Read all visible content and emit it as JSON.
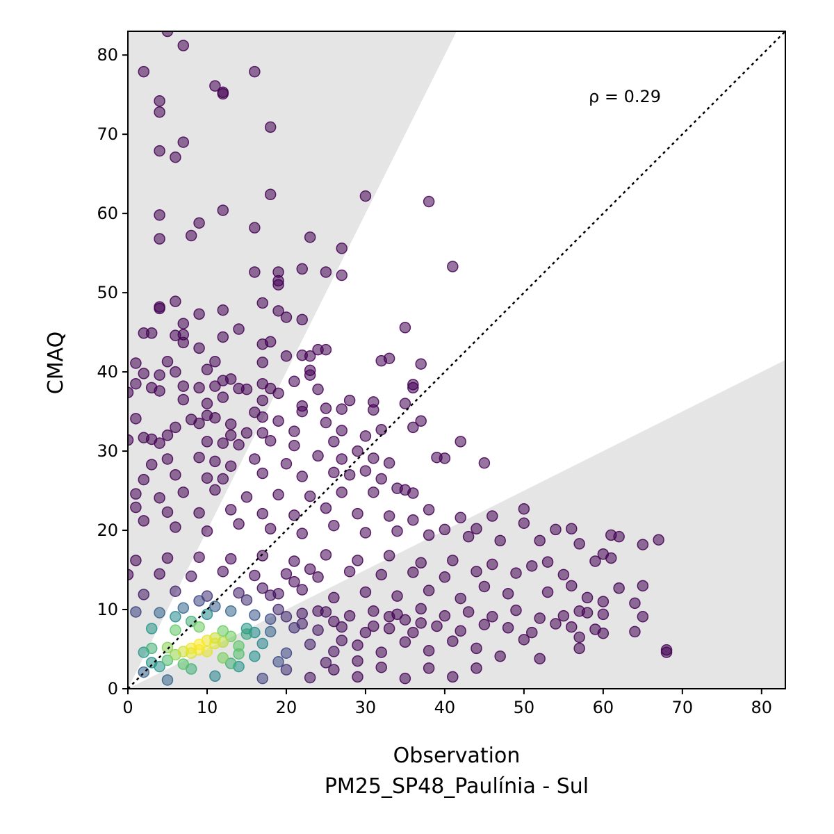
{
  "chart_data": {
    "type": "scatter",
    "title": "",
    "xlabel": "Observation",
    "xlabel_line2": "PM25_SP48_Paulínia - Sul",
    "ylabel": "CMAQ",
    "xlim": [
      0,
      83
    ],
    "ylim": [
      0,
      83
    ],
    "xticks": [
      0,
      10,
      20,
      30,
      40,
      50,
      60,
      70,
      80
    ],
    "yticks": [
      0,
      10,
      20,
      30,
      40,
      50,
      60,
      70,
      80
    ],
    "annotation": "ρ = 0.29",
    "reference_line": {
      "type": "1:1",
      "style": "dotted",
      "color": "#000000"
    },
    "shaded_regions": [
      {
        "description": "outside factor-of-2",
        "upper_slope": 2,
        "lower_slope": 0.5,
        "color": "#e5e5e5"
      }
    ],
    "grid": false,
    "colormap": "viridis (point density)",
    "point_alpha": 0.55,
    "points": [
      [
        5,
        83
      ],
      [
        7,
        81.2
      ],
      [
        2,
        77.9
      ],
      [
        16,
        77.9
      ],
      [
        11,
        76.1
      ],
      [
        12,
        75.3
      ],
      [
        12,
        75.1
      ],
      [
        4,
        74.2
      ],
      [
        4,
        72.8
      ],
      [
        18,
        70.9
      ],
      [
        7,
        69
      ],
      [
        4,
        67.9
      ],
      [
        6,
        67.1
      ],
      [
        18,
        62.4
      ],
      [
        30,
        62.2
      ],
      [
        38,
        61.5
      ],
      [
        12,
        60.4
      ],
      [
        4,
        59.8
      ],
      [
        9,
        58.8
      ],
      [
        16,
        58.2
      ],
      [
        8,
        57.2
      ],
      [
        4,
        56.8
      ],
      [
        23,
        57
      ],
      [
        27,
        55.6
      ],
      [
        41,
        53.3
      ],
      [
        16,
        52.6
      ],
      [
        19,
        52.6
      ],
      [
        22,
        53
      ],
      [
        25,
        52.6
      ],
      [
        27,
        52.2
      ],
      [
        19,
        51.5
      ],
      [
        19,
        51
      ],
      [
        4,
        48.2
      ],
      [
        4,
        48
      ],
      [
        6,
        48.9
      ],
      [
        17,
        48.7
      ],
      [
        12,
        47.8
      ],
      [
        9,
        47.3
      ],
      [
        19,
        47.7
      ],
      [
        20,
        46.9
      ],
      [
        22,
        46.6
      ],
      [
        7,
        46.1
      ],
      [
        14,
        45.4
      ],
      [
        35,
        45.6
      ],
      [
        2,
        44.9
      ],
      [
        3,
        44.9
      ],
      [
        6,
        44.6
      ],
      [
        7,
        44.7
      ],
      [
        12,
        44.4
      ],
      [
        17,
        43.5
      ],
      [
        18,
        43.8
      ],
      [
        7,
        43.7
      ],
      [
        9,
        43
      ],
      [
        24,
        42.8
      ],
      [
        25,
        42.8
      ],
      [
        5,
        41.3
      ],
      [
        1,
        41.1
      ],
      [
        11,
        41.3
      ],
      [
        17,
        41.2
      ],
      [
        20,
        42
      ],
      [
        22,
        42.1
      ],
      [
        23,
        42
      ],
      [
        32,
        41.4
      ],
      [
        33,
        41.7
      ],
      [
        37,
        41
      ],
      [
        2,
        39.8
      ],
      [
        4,
        39.6
      ],
      [
        6,
        40
      ],
      [
        10,
        40.3
      ],
      [
        13,
        39.1
      ],
      [
        23,
        40.2
      ],
      [
        23,
        39.6
      ],
      [
        1,
        38.5
      ],
      [
        3,
        38
      ],
      [
        4,
        37.6
      ],
      [
        7,
        38.2
      ],
      [
        9,
        38
      ],
      [
        11,
        38.2
      ],
      [
        12,
        38.9
      ],
      [
        14,
        37.9
      ],
      [
        15,
        37.8
      ],
      [
        17,
        38.5
      ],
      [
        18,
        37.9
      ],
      [
        19,
        37.3
      ],
      [
        21,
        38.8
      ],
      [
        24,
        37.8
      ],
      [
        36,
        38.4
      ],
      [
        36,
        38
      ],
      [
        0,
        37.4
      ],
      [
        7,
        36.5
      ],
      [
        10,
        36
      ],
      [
        12,
        36.8
      ],
      [
        17,
        36.4
      ],
      [
        28,
        36.4
      ],
      [
        31,
        36.2
      ],
      [
        22,
        35.7
      ],
      [
        22,
        35
      ],
      [
        25,
        35.4
      ],
      [
        27,
        35.3
      ],
      [
        31,
        35.2
      ],
      [
        35,
        36
      ],
      [
        16,
        34.9
      ],
      [
        17,
        34.3
      ],
      [
        10,
        34.5
      ],
      [
        11,
        34.2
      ],
      [
        1,
        34.1
      ],
      [
        8,
        34
      ],
      [
        13,
        33.4
      ],
      [
        19,
        33.8
      ],
      [
        25,
        33.6
      ],
      [
        37,
        33.8
      ],
      [
        36,
        33
      ],
      [
        6,
        33
      ],
      [
        9,
        33.5
      ],
      [
        21,
        32.5
      ],
      [
        27,
        32.6
      ],
      [
        32,
        32.7
      ],
      [
        5,
        32
      ],
      [
        13,
        32
      ],
      [
        15,
        32.3
      ],
      [
        17,
        32.3
      ],
      [
        2,
        31.7
      ],
      [
        3,
        31.5
      ],
      [
        4,
        31
      ],
      [
        10,
        31.2
      ],
      [
        12,
        31
      ],
      [
        14,
        30.8
      ],
      [
        18,
        31.3
      ],
      [
        21,
        30.7
      ],
      [
        26,
        31.2
      ],
      [
        30,
        31.9
      ],
      [
        42,
        31.2
      ],
      [
        0,
        31.4
      ],
      [
        3,
        28.3
      ],
      [
        5,
        29
      ],
      [
        9,
        29.2
      ],
      [
        11,
        28.7
      ],
      [
        13,
        28.1
      ],
      [
        16,
        29
      ],
      [
        20,
        28.4
      ],
      [
        24,
        29.4
      ],
      [
        27,
        29
      ],
      [
        29,
        30
      ],
      [
        31,
        29.1
      ],
      [
        33,
        28.5
      ],
      [
        39,
        29.2
      ],
      [
        40,
        29.1
      ],
      [
        45,
        28.5
      ],
      [
        2,
        26.4
      ],
      [
        6,
        27
      ],
      [
        10,
        26.6
      ],
      [
        12,
        26.5
      ],
      [
        17,
        27.2
      ],
      [
        22,
        26.8
      ],
      [
        26,
        27.3
      ],
      [
        28,
        27
      ],
      [
        30,
        27.5
      ],
      [
        32,
        26.5
      ],
      [
        34,
        25.3
      ],
      [
        36,
        24.7
      ],
      [
        1,
        24.6
      ],
      [
        4,
        24.1
      ],
      [
        7,
        24.8
      ],
      [
        11,
        25.1
      ],
      [
        15,
        24.2
      ],
      [
        19,
        24.5
      ],
      [
        23,
        24.3
      ],
      [
        27,
        24.8
      ],
      [
        31,
        24.8
      ],
      [
        35,
        25.1
      ],
      [
        38,
        22.6
      ],
      [
        42,
        21.6
      ],
      [
        46,
        21.8
      ],
      [
        50,
        22.7
      ],
      [
        1,
        22.9
      ],
      [
        5,
        22.3
      ],
      [
        9,
        22.2
      ],
      [
        13,
        22.6
      ],
      [
        17,
        22.1
      ],
      [
        21,
        21.9
      ],
      [
        25,
        22.8
      ],
      [
        29,
        22.1
      ],
      [
        33,
        21.8
      ],
      [
        36,
        21.3
      ],
      [
        40,
        20.1
      ],
      [
        44,
        20.2
      ],
      [
        50,
        20.9
      ],
      [
        54,
        20.1
      ],
      [
        56,
        20.2
      ],
      [
        61,
        19.4
      ],
      [
        2,
        21.2
      ],
      [
        6,
        20.4
      ],
      [
        10,
        19.9
      ],
      [
        14,
        20.8
      ],
      [
        18,
        20.2
      ],
      [
        22,
        19.6
      ],
      [
        26,
        20.6
      ],
      [
        30,
        19.7
      ],
      [
        34,
        19.9
      ],
      [
        38,
        19.4
      ],
      [
        43,
        19.2
      ],
      [
        47,
        18.7
      ],
      [
        52,
        18.7
      ],
      [
        57,
        18.3
      ],
      [
        62,
        19.2
      ],
      [
        65,
        18.2
      ],
      [
        67,
        18.8
      ],
      [
        60,
        17
      ],
      [
        59,
        16.1
      ],
      [
        61,
        16.5
      ],
      [
        53,
        16
      ],
      [
        51,
        15.5
      ],
      [
        46,
        15.7
      ],
      [
        41,
        16.2
      ],
      [
        37,
        15.9
      ],
      [
        33,
        16.8
      ],
      [
        29,
        16.2
      ],
      [
        25,
        16.9
      ],
      [
        21,
        16.1
      ],
      [
        17,
        16.8
      ],
      [
        13,
        16.4
      ],
      [
        9,
        16.6
      ],
      [
        5,
        16.5
      ],
      [
        1,
        16.2
      ],
      [
        55,
        14.4
      ],
      [
        49,
        14.6
      ],
      [
        44,
        14.8
      ],
      [
        40,
        14.1
      ],
      [
        36,
        14.7
      ],
      [
        32,
        14.4
      ],
      [
        28,
        14.8
      ],
      [
        24,
        14.1
      ],
      [
        20,
        14.5
      ],
      [
        16,
        14.3
      ],
      [
        12,
        14.8
      ],
      [
        8,
        14.2
      ],
      [
        4,
        14.5
      ],
      [
        0,
        14.4
      ],
      [
        56,
        13
      ],
      [
        58,
        11.5
      ],
      [
        60,
        11
      ],
      [
        62,
        12.7
      ],
      [
        65,
        13
      ],
      [
        53,
        12.2
      ],
      [
        48,
        12
      ],
      [
        45,
        12.9
      ],
      [
        42,
        11.4
      ],
      [
        38,
        12.4
      ],
      [
        34,
        11.7
      ],
      [
        30,
        12.2
      ],
      [
        26,
        11.5
      ],
      [
        22,
        12.5
      ],
      [
        18,
        11.8
      ],
      [
        14,
        12.1
      ],
      [
        10,
        11.7
      ],
      [
        6,
        12.3
      ],
      [
        2,
        11.9
      ],
      [
        57,
        9.8
      ],
      [
        58,
        9.6
      ],
      [
        60,
        9.4
      ],
      [
        64,
        10.8
      ],
      [
        65,
        9.1
      ],
      [
        55,
        9.2
      ],
      [
        52,
        8.9
      ],
      [
        49,
        9.9
      ],
      [
        46,
        9.1
      ],
      [
        43,
        9.7
      ],
      [
        40,
        9.2
      ],
      [
        37,
        10.1
      ],
      [
        34,
        9.4
      ],
      [
        31,
        9.8
      ],
      [
        28,
        9.2
      ],
      [
        25,
        9.7
      ],
      [
        22,
        9.5
      ],
      [
        19,
        10
      ],
      [
        16,
        9.3
      ],
      [
        13,
        9.8
      ],
      [
        10,
        9.4
      ],
      [
        7,
        10.2
      ],
      [
        4,
        9.6
      ],
      [
        1,
        9.7
      ],
      [
        54,
        8.2
      ],
      [
        56,
        7.8
      ],
      [
        59,
        7.5
      ],
      [
        60,
        7
      ],
      [
        64,
        7.2
      ],
      [
        57,
        6.5
      ],
      [
        51,
        7.1
      ],
      [
        48,
        7.7
      ],
      [
        45,
        8.1
      ],
      [
        42,
        7.3
      ],
      [
        39,
        7.9
      ],
      [
        36,
        7.1
      ],
      [
        33,
        7.6
      ],
      [
        30,
        7.1
      ],
      [
        27,
        7.8
      ],
      [
        24,
        7.4
      ],
      [
        21,
        7.7
      ],
      [
        18,
        7.2
      ],
      [
        15,
        7.6
      ],
      [
        12,
        7.3
      ],
      [
        9,
        7.8
      ],
      [
        6,
        7.4
      ],
      [
        3,
        7.6
      ],
      [
        57,
        5.1
      ],
      [
        68,
        4.9
      ],
      [
        68,
        4.6
      ],
      [
        52,
        3.8
      ],
      [
        50,
        6.2
      ],
      [
        47,
        4.1
      ],
      [
        44,
        5.1
      ],
      [
        41,
        6
      ],
      [
        38,
        4.8
      ],
      [
        35,
        5.9
      ],
      [
        32,
        4.6
      ],
      [
        29,
        5.5
      ],
      [
        26,
        4.7
      ],
      [
        23,
        5.6
      ],
      [
        20,
        4.5
      ],
      [
        17,
        5.7
      ],
      [
        14,
        4.4
      ],
      [
        11,
        5.7
      ],
      [
        8,
        4.5
      ],
      [
        5,
        5.2
      ],
      [
        2,
        4.6
      ],
      [
        44,
        2.6
      ],
      [
        41,
        1.5
      ],
      [
        38,
        2.6
      ],
      [
        35,
        1.3
      ],
      [
        32,
        2.7
      ],
      [
        29,
        1.5
      ],
      [
        26,
        2.4
      ],
      [
        23,
        1.4
      ],
      [
        20,
        2.4
      ],
      [
        17,
        1.3
      ],
      [
        14,
        2.8
      ],
      [
        11,
        1.6
      ],
      [
        8,
        2.5
      ],
      [
        5,
        1.1
      ],
      [
        2,
        2.1
      ],
      [
        29,
        3.5
      ],
      [
        25,
        3.3
      ],
      [
        19,
        3.4
      ],
      [
        13,
        3.2
      ],
      [
        7,
        3.1
      ],
      [
        3,
        3.3
      ],
      [
        10,
        6.1
      ],
      [
        9,
        5.6
      ],
      [
        8,
        5.1
      ],
      [
        7,
        4.7
      ],
      [
        12,
        5.9
      ],
      [
        11,
        6.4
      ],
      [
        6,
        4.3
      ],
      [
        9,
        4.9
      ],
      [
        13,
        6.6
      ],
      [
        15,
        6.9
      ],
      [
        16,
        7.1
      ],
      [
        10,
        4.7
      ],
      [
        14,
        5.4
      ],
      [
        18,
        8.8
      ],
      [
        20,
        9.1
      ],
      [
        5,
        3.6
      ],
      [
        4,
        2.8
      ],
      [
        22,
        8.2
      ],
      [
        24,
        9.8
      ],
      [
        26,
        8.5
      ],
      [
        19,
        12
      ],
      [
        17,
        12.7
      ],
      [
        15,
        11.2
      ],
      [
        21,
        13.5
      ],
      [
        23,
        15.1
      ],
      [
        8,
        8.5
      ],
      [
        6,
        9.1
      ],
      [
        11,
        10.4
      ],
      [
        9,
        11.1
      ],
      [
        3,
        5.1
      ],
      [
        12,
        3.9
      ],
      [
        16,
        4.1
      ],
      [
        27,
        6.1
      ],
      [
        31,
        7.9
      ],
      [
        33,
        9.1
      ],
      [
        35,
        8.7
      ],
      [
        37,
        8.3
      ]
    ]
  }
}
